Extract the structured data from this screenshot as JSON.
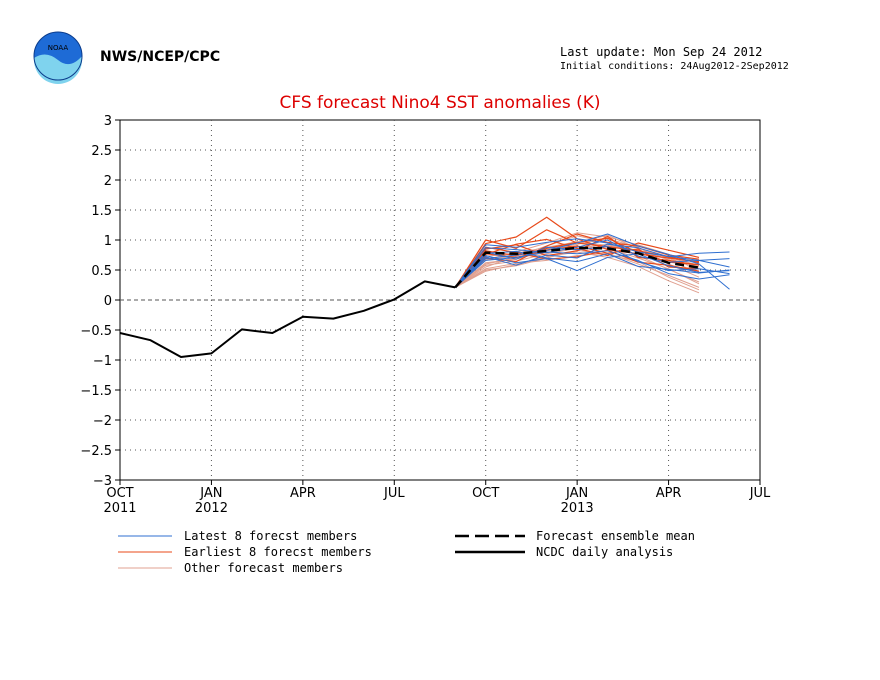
{
  "header": {
    "agency": "NWS/NCEP/CPC",
    "last_update": "Last update: Mon Sep 24 2012",
    "initial_conditions": "Initial conditions: 24Aug2012-2Sep2012",
    "logo_text": "NOAA"
  },
  "chart_data": {
    "type": "line",
    "title": "CFS forecast Nino4 SST anomalies (K)",
    "xlabel": "",
    "ylabel": "",
    "ylim": [
      -3,
      3
    ],
    "yticks": [
      3,
      2.5,
      2,
      1.5,
      1,
      0.5,
      0,
      -0.5,
      -1,
      -1.5,
      -2,
      -2.5,
      -3
    ],
    "ytick_labels": [
      "3",
      "2.5",
      "2",
      "1.5",
      "1",
      "0.5",
      "0",
      "−0.5",
      "−1",
      "−1.5",
      "−2",
      "−2.5",
      "−3"
    ],
    "xlim": [
      "2011-10",
      "2013-07"
    ],
    "xticks": [
      {
        "month": "2011-10",
        "label": "OCT",
        "year": "2011"
      },
      {
        "month": "2012-01",
        "label": "JAN",
        "year": "2012"
      },
      {
        "month": "2012-04",
        "label": "APR",
        "year": ""
      },
      {
        "month": "2012-07",
        "label": "JUL",
        "year": ""
      },
      {
        "month": "2012-10",
        "label": "OCT",
        "year": ""
      },
      {
        "month": "2013-01",
        "label": "JAN",
        "year": "2013"
      },
      {
        "month": "2013-04",
        "label": "APR",
        "year": ""
      },
      {
        "month": "2013-07",
        "label": "JUL",
        "year": ""
      }
    ],
    "grid": true,
    "zero_line": true,
    "series": [
      {
        "name": "NCDC daily analysis",
        "role": "analysis",
        "color": "#000000",
        "dates": [
          "2011-10-01",
          "2011-11-01",
          "2011-12-01",
          "2012-01-01",
          "2012-02-01",
          "2012-03-01",
          "2012-04-01",
          "2012-05-01",
          "2012-06-01",
          "2012-07-01",
          "2012-08-01",
          "2012-09-01"
        ],
        "values": [
          -0.55,
          -0.67,
          -0.95,
          -0.89,
          -0.49,
          -0.55,
          -0.28,
          -0.31,
          -0.18,
          0.01,
          0.31,
          0.21
        ]
      },
      {
        "name": "Forecast ensemble mean",
        "role": "mean",
        "color": "#000000",
        "dates": [
          "2012-09-01",
          "2012-10-01",
          "2012-11-01",
          "2012-12-01",
          "2013-01-01",
          "2013-02-01",
          "2013-03-01",
          "2013-04-01",
          "2013-05-01"
        ],
        "values": [
          0.21,
          0.79,
          0.77,
          0.82,
          0.87,
          0.86,
          0.78,
          0.62,
          0.54
        ]
      },
      {
        "name": "Latest 8 forecst members",
        "role": "latest",
        "color": "#2f6fd0",
        "members": [
          {
            "start": "2012-09-01",
            "values": [
              0.21,
              0.72,
              0.58,
              0.75,
              0.7,
              0.93,
              0.87,
              0.72,
              0.78,
              0.8
            ]
          },
          {
            "start": "2012-09-01",
            "values": [
              0.21,
              0.8,
              0.68,
              0.88,
              0.84,
              0.89,
              0.64,
              0.49,
              0.52,
              0.44
            ]
          },
          {
            "start": "2012-09-01",
            "values": [
              0.21,
              0.69,
              0.75,
              0.83,
              0.95,
              1.1,
              0.9,
              0.76,
              0.6,
              0.18
            ]
          },
          {
            "start": "2012-09-01",
            "values": [
              0.21,
              0.74,
              0.62,
              0.69,
              0.49,
              0.71,
              0.77,
              0.57,
              0.46,
              0.49
            ]
          },
          {
            "start": "2012-09-01",
            "values": [
              0.21,
              0.87,
              0.84,
              0.79,
              0.88,
              1.0,
              0.73,
              0.63,
              0.66,
              0.55
            ]
          },
          {
            "start": "2012-09-01",
            "values": [
              0.21,
              0.66,
              0.71,
              0.8,
              0.77,
              0.82,
              0.66,
              0.44,
              0.35,
              0.42
            ]
          },
          {
            "start": "2012-09-01",
            "values": [
              0.21,
              0.92,
              0.88,
              0.96,
              1.02,
              0.95,
              0.8,
              0.73,
              0.66,
              0.69
            ]
          },
          {
            "start": "2012-09-01",
            "values": [
              0.21,
              0.78,
              0.81,
              0.7,
              0.64,
              0.77,
              0.56,
              0.51,
              0.45,
              0.5
            ]
          }
        ]
      },
      {
        "name": "Earliest 8 forecst members",
        "role": "earliest",
        "color": "#e84a1a",
        "members": [
          {
            "start": "2012-09-01",
            "values": [
              0.21,
              1.0,
              0.86,
              1.17,
              0.95,
              0.89,
              0.82,
              0.72,
              0.62
            ]
          },
          {
            "start": "2012-09-01",
            "values": [
              0.21,
              0.94,
              1.05,
              1.38,
              1.02,
              0.84,
              0.77,
              0.7,
              0.64
            ]
          },
          {
            "start": "2012-09-01",
            "values": [
              0.21,
              0.77,
              0.71,
              0.83,
              0.9,
              0.78,
              0.85,
              0.55,
              0.52
            ]
          },
          {
            "start": "2012-09-01",
            "values": [
              0.21,
              0.85,
              0.92,
              0.74,
              0.82,
              1.06,
              0.71,
              0.66,
              0.58
            ]
          },
          {
            "start": "2012-09-01",
            "values": [
              0.21,
              0.7,
              0.64,
              0.9,
              1.1,
              0.96,
              0.9,
              0.75,
              0.68
            ]
          },
          {
            "start": "2012-09-01",
            "values": [
              0.21,
              0.88,
              0.79,
              0.68,
              0.72,
              0.83,
              0.63,
              0.58,
              0.48
            ]
          },
          {
            "start": "2012-09-01",
            "values": [
              0.21,
              0.76,
              0.93,
              1.01,
              0.86,
              0.74,
              0.95,
              0.83,
              0.71
            ]
          },
          {
            "start": "2012-09-01",
            "values": [
              0.21,
              0.82,
              0.74,
              0.86,
              0.96,
              1.03,
              0.79,
              0.63,
              0.59
            ]
          }
        ]
      },
      {
        "name": "Other forecast members",
        "role": "other",
        "color": "#e0a090",
        "members": [
          {
            "start": "2012-09-01",
            "values": [
              0.21,
              0.62,
              0.68,
              0.82,
              0.93,
              1.02,
              0.88,
              0.6,
              0.38
            ]
          },
          {
            "start": "2012-09-01",
            "values": [
              0.21,
              0.55,
              0.73,
              0.9,
              1.07,
              0.96,
              0.74,
              0.51,
              0.3
            ]
          },
          {
            "start": "2012-09-01",
            "values": [
              0.21,
              0.48,
              0.59,
              0.72,
              0.8,
              0.71,
              0.56,
              0.32,
              0.12
            ]
          },
          {
            "start": "2012-09-01",
            "values": [
              0.21,
              0.58,
              0.65,
              0.77,
              0.86,
              0.93,
              0.81,
              0.69,
              0.55
            ]
          },
          {
            "start": "2012-09-01",
            "values": [
              0.21,
              0.67,
              0.8,
              0.95,
              1.12,
              1.05,
              0.92,
              0.76,
              0.47
            ]
          },
          {
            "start": "2012-09-01",
            "values": [
              0.21,
              0.52,
              0.61,
              0.66,
              0.74,
              0.78,
              0.6,
              0.41,
              0.21
            ]
          },
          {
            "start": "2012-09-01",
            "values": [
              0.21,
              0.73,
              0.78,
              0.88,
              0.97,
              0.91,
              0.83,
              0.67,
              0.44
            ]
          },
          {
            "start": "2012-09-01",
            "values": [
              0.21,
              0.6,
              0.7,
              0.79,
              0.89,
              0.86,
              0.7,
              0.52,
              0.27
            ]
          },
          {
            "start": "2012-09-01",
            "values": [
              0.21,
              0.66,
              0.74,
              0.84,
              0.95,
              1.08,
              0.86,
              0.71,
              0.58
            ]
          },
          {
            "start": "2012-09-01",
            "values": [
              0.21,
              0.5,
              0.57,
              0.7,
              0.83,
              0.76,
              0.64,
              0.38,
              0.17
            ]
          }
        ]
      }
    ],
    "legend": {
      "placement": "bottom",
      "entries": [
        {
          "label": "Latest 8 forecst members",
          "color": "#2f6fd0",
          "style": "solid-thin"
        },
        {
          "label": "Earliest 8 forecst members",
          "color": "#e84a1a",
          "style": "solid-thin"
        },
        {
          "label": "Other forecast members",
          "color": "#e0a090",
          "style": "solid-thin"
        },
        {
          "label": "Forecast ensemble mean",
          "color": "#000000",
          "style": "dashed-thick"
        },
        {
          "label": "NCDC daily analysis",
          "color": "#000000",
          "style": "solid-thick"
        }
      ]
    }
  }
}
